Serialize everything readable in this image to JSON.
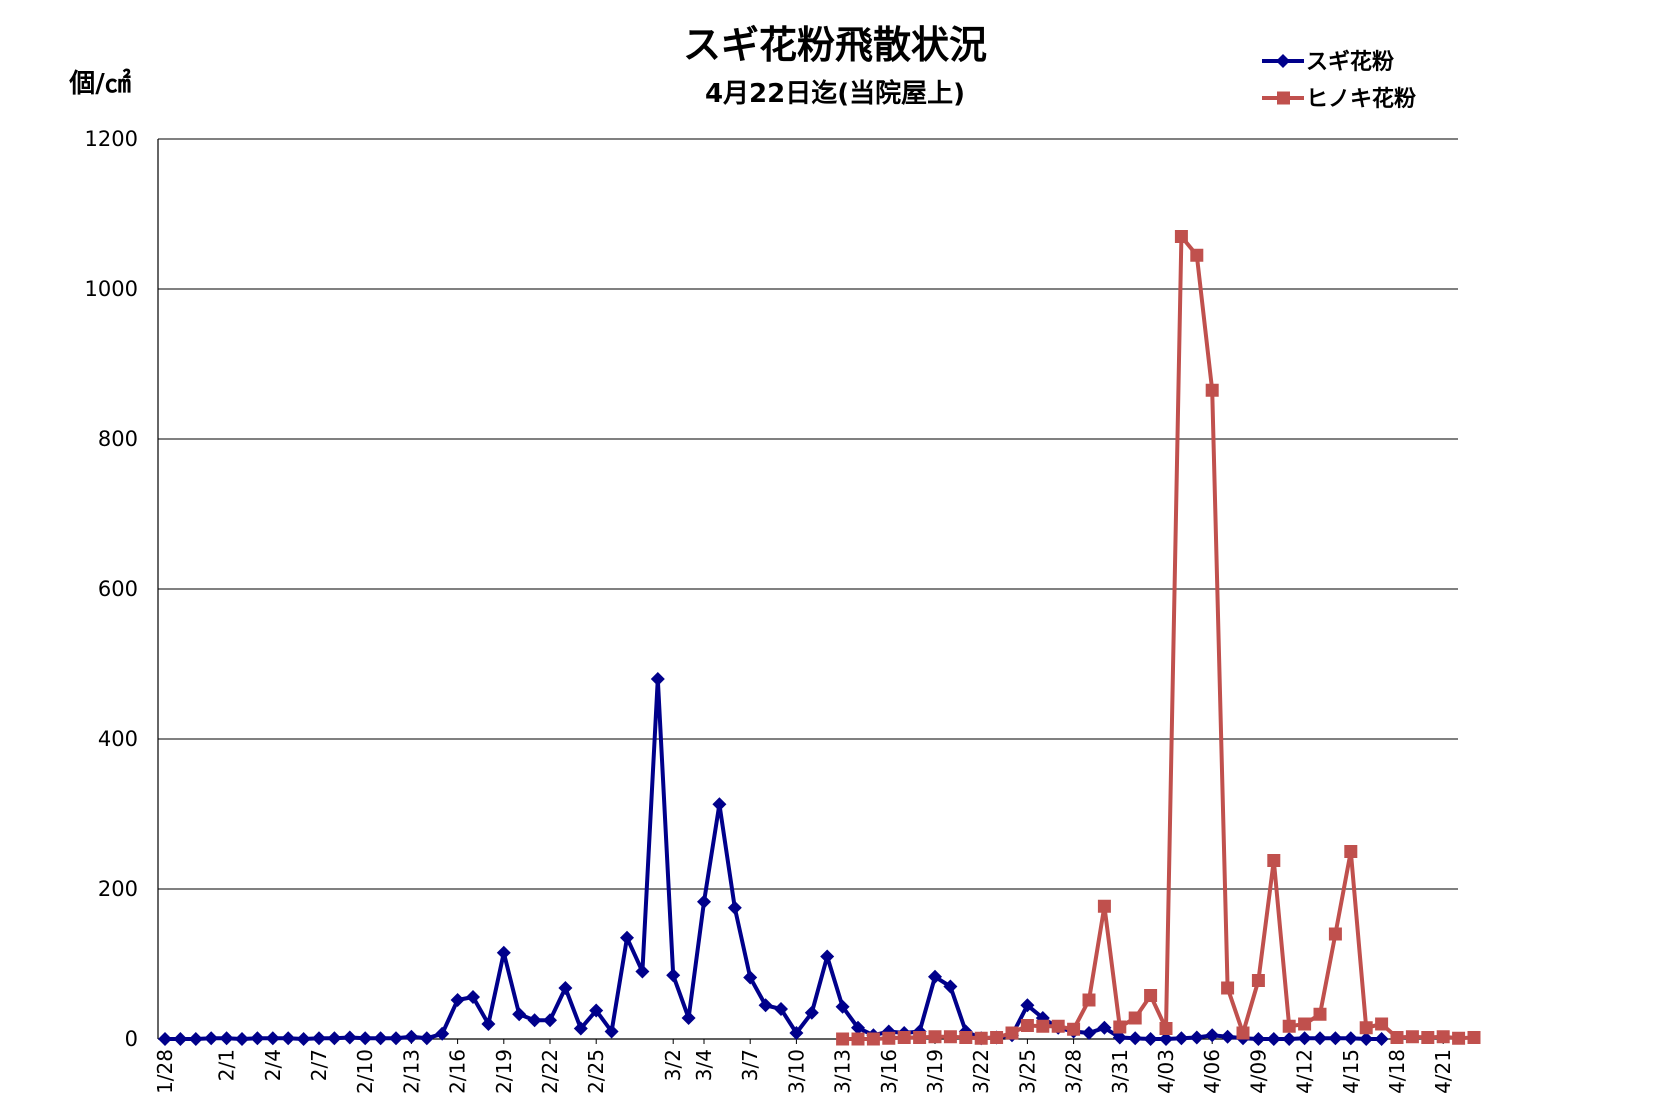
{
  "chart_data": {
    "type": "line",
    "title": "スギ花粉飛散状況",
    "subtitle": "4月22日迄(当院屋上)",
    "ylabel": "個/㎠",
    "ylim": [
      0,
      1200
    ],
    "yticks": [
      "0",
      "200",
      "400",
      "600",
      "800",
      "1000",
      "1200"
    ],
    "grid": true,
    "legend_position": "top-right",
    "x_labels": [
      {
        "day": 0,
        "label": "1/28"
      },
      {
        "day": 4,
        "label": "2/1"
      },
      {
        "day": 7,
        "label": "2/4"
      },
      {
        "day": 10,
        "label": "2/7"
      },
      {
        "day": 13,
        "label": "2/10"
      },
      {
        "day": 16,
        "label": "2/13"
      },
      {
        "day": 19,
        "label": "2/16"
      },
      {
        "day": 22,
        "label": "2/19"
      },
      {
        "day": 25,
        "label": "2/22"
      },
      {
        "day": 28,
        "label": "2/25"
      },
      {
        "day": 33,
        "label": "3/2"
      },
      {
        "day": 35,
        "label": "3/4"
      },
      {
        "day": 38,
        "label": "3/7"
      },
      {
        "day": 41,
        "label": "3/10"
      },
      {
        "day": 44,
        "label": "3/13"
      },
      {
        "day": 47,
        "label": "3/16"
      },
      {
        "day": 50,
        "label": "3/19"
      },
      {
        "day": 53,
        "label": "3/22"
      },
      {
        "day": 56,
        "label": "3/25"
      },
      {
        "day": 59,
        "label": "3/28"
      },
      {
        "day": 62,
        "label": "3/31"
      },
      {
        "day": 65,
        "label": "4/03"
      },
      {
        "day": 68,
        "label": "4/06"
      },
      {
        "day": 71,
        "label": "4/09"
      },
      {
        "day": 74,
        "label": "4/12"
      },
      {
        "day": 77,
        "label": "4/15"
      },
      {
        "day": 80,
        "label": "4/18"
      },
      {
        "day": 83,
        "label": "4/21"
      }
    ],
    "series": [
      {
        "name": "スギ花粉",
        "color": "#00008B",
        "marker": "diamond",
        "points": [
          [
            0,
            0
          ],
          [
            1,
            0
          ],
          [
            2,
            0
          ],
          [
            3,
            1
          ],
          [
            4,
            1
          ],
          [
            5,
            0
          ],
          [
            6,
            1
          ],
          [
            7,
            1
          ],
          [
            8,
            1
          ],
          [
            9,
            0
          ],
          [
            10,
            1
          ],
          [
            11,
            1
          ],
          [
            12,
            2
          ],
          [
            13,
            1
          ],
          [
            14,
            1
          ],
          [
            15,
            1
          ],
          [
            16,
            3
          ],
          [
            17,
            1
          ],
          [
            18,
            7
          ],
          [
            19,
            52
          ],
          [
            20,
            56
          ],
          [
            21,
            20
          ],
          [
            22,
            115
          ],
          [
            23,
            33
          ],
          [
            24,
            25
          ],
          [
            25,
            25
          ],
          [
            26,
            68
          ],
          [
            27,
            14
          ],
          [
            28,
            38
          ],
          [
            29,
            10
          ],
          [
            30,
            135
          ],
          [
            31,
            90
          ],
          [
            32,
            480
          ],
          [
            33,
            85
          ],
          [
            34,
            28
          ],
          [
            35,
            183
          ],
          [
            36,
            313
          ],
          [
            37,
            175
          ],
          [
            38,
            82
          ],
          [
            39,
            45
          ],
          [
            40,
            40
          ],
          [
            41,
            8
          ],
          [
            42,
            35
          ],
          [
            43,
            110
          ],
          [
            44,
            43
          ],
          [
            45,
            15
          ],
          [
            46,
            5
          ],
          [
            47,
            10
          ],
          [
            48,
            8
          ],
          [
            49,
            10
          ],
          [
            50,
            83
          ],
          [
            51,
            70
          ],
          [
            52,
            10
          ],
          [
            53,
            1
          ],
          [
            54,
            2
          ],
          [
            55,
            5
          ],
          [
            56,
            45
          ],
          [
            57,
            28
          ],
          [
            58,
            15
          ],
          [
            59,
            10
          ],
          [
            60,
            8
          ],
          [
            61,
            15
          ],
          [
            62,
            2
          ],
          [
            63,
            1
          ],
          [
            64,
            0
          ],
          [
            65,
            0
          ],
          [
            66,
            1
          ],
          [
            67,
            2
          ],
          [
            68,
            5
          ],
          [
            69,
            3
          ],
          [
            70,
            1
          ],
          [
            71,
            0
          ],
          [
            72,
            0
          ],
          [
            73,
            0
          ],
          [
            74,
            1
          ],
          [
            75,
            1
          ],
          [
            76,
            1
          ],
          [
            77,
            1
          ],
          [
            78,
            0
          ],
          [
            79,
            0
          ]
        ]
      },
      {
        "name": "ヒノキ花粉",
        "color": "#C0504D",
        "marker": "square",
        "points": [
          [
            44,
            0
          ],
          [
            45,
            0
          ],
          [
            46,
            0
          ],
          [
            47,
            1
          ],
          [
            48,
            2
          ],
          [
            49,
            2
          ],
          [
            50,
            3
          ],
          [
            51,
            3
          ],
          [
            52,
            2
          ],
          [
            53,
            1
          ],
          [
            54,
            2
          ],
          [
            55,
            8
          ],
          [
            56,
            18
          ],
          [
            57,
            17
          ],
          [
            58,
            17
          ],
          [
            59,
            13
          ],
          [
            60,
            52
          ],
          [
            61,
            177
          ],
          [
            62,
            16
          ],
          [
            63,
            28
          ],
          [
            64,
            58
          ],
          [
            65,
            14
          ],
          [
            66,
            1070
          ],
          [
            67,
            1045
          ],
          [
            68,
            865
          ],
          [
            69,
            68
          ],
          [
            70,
            8
          ],
          [
            71,
            78
          ],
          [
            72,
            238
          ],
          [
            73,
            17
          ],
          [
            74,
            20
          ],
          [
            75,
            33
          ],
          [
            76,
            140
          ],
          [
            77,
            250
          ],
          [
            78,
            15
          ],
          [
            79,
            20
          ],
          [
            80,
            2
          ],
          [
            81,
            3
          ],
          [
            82,
            2
          ],
          [
            83,
            3
          ],
          [
            84,
            1
          ],
          [
            85,
            2
          ]
        ]
      }
    ]
  }
}
